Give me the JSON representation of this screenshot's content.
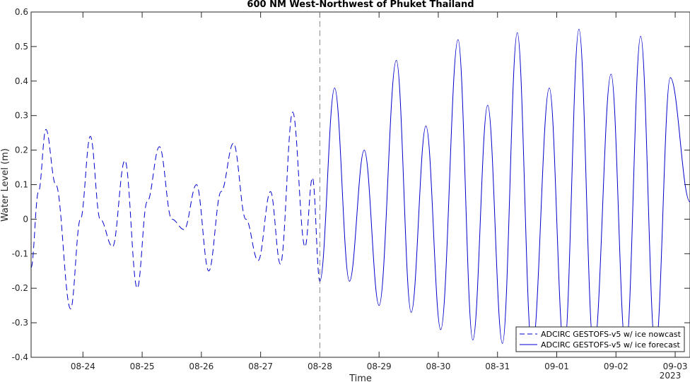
{
  "chart_data": {
    "type": "line",
    "title": "600 NM West-Northwest of Phuket Thailand",
    "xlabel": "Time",
    "ylabel": "Water Level (m)",
    "ylim": [
      -0.4,
      0.6
    ],
    "yticks": [
      "-0.4",
      "-0.3",
      "-0.2",
      "-0.1",
      "0",
      "0.1",
      "0.2",
      "0.3",
      "0.4",
      "0.5",
      "0.6"
    ],
    "xlim": [
      "2023-08-23 03:00",
      "2023-09-03 06:00"
    ],
    "xticks": [
      {
        "date": "2023-08-24",
        "label": "08-24"
      },
      {
        "date": "2023-08-25",
        "label": "08-25"
      },
      {
        "date": "2023-08-26",
        "label": "08-26"
      },
      {
        "date": "2023-08-27",
        "label": "08-27"
      },
      {
        "date": "2023-08-28",
        "label": "08-28"
      },
      {
        "date": "2023-08-29",
        "label": "08-29"
      },
      {
        "date": "2023-08-30",
        "label": "08-30"
      },
      {
        "date": "2023-08-31",
        "label": "08-31"
      },
      {
        "date": "2023-09-01",
        "label": "09-01"
      },
      {
        "date": "2023-09-02",
        "label": "09-02"
      },
      {
        "date": "2023-09-03",
        "label": "09-03"
      }
    ],
    "year_label": "2023",
    "forecast_start": "2023-08-28 00:00",
    "legend_position": "bottom-right",
    "series": [
      {
        "name": "ADCIRC GESTOFS-v5 w/ ice nowcast",
        "style": "dashed",
        "color": "#0000cc",
        "x": [
          "2023-08-23 03:00",
          "2023-08-23 06:00",
          "2023-08-23 09:00",
          "2023-08-23 13:00",
          "2023-08-23 19:00",
          "2023-08-23 23:00",
          "2023-08-24 03:00",
          "2023-08-24 07:00",
          "2023-08-24 12:00",
          "2023-08-24 17:00",
          "2023-08-24 22:00",
          "2023-08-25 02:00",
          "2023-08-25 07:00",
          "2023-08-25 12:00",
          "2023-08-25 17:00",
          "2023-08-25 22:00",
          "2023-08-26 03:00",
          "2023-08-26 08:00",
          "2023-08-26 13:00",
          "2023-08-26 18:00",
          "2023-08-26 23:00",
          "2023-08-27 04:00",
          "2023-08-27 08:00",
          "2023-08-27 13:00",
          "2023-08-27 18:00",
          "2023-08-27 21:00",
          "2023-08-28 00:00"
        ],
        "y": [
          -0.14,
          0.08,
          0.26,
          0.1,
          -0.26,
          0.0,
          0.24,
          0.0,
          -0.08,
          0.17,
          -0.2,
          0.05,
          0.21,
          0.0,
          -0.03,
          0.1,
          -0.15,
          0.08,
          0.22,
          0.0,
          -0.12,
          0.08,
          -0.13,
          0.31,
          -0.08,
          0.12,
          -0.18
        ]
      },
      {
        "name": "ADCIRC GESTOFS-v5 w/ ice forecast",
        "style": "solid",
        "color": "#0000cc",
        "x": [
          "2023-08-28 00:00",
          "2023-08-28 06:00",
          "2023-08-28 12:00",
          "2023-08-28 18:00",
          "2023-08-29 00:00",
          "2023-08-29 07:00",
          "2023-08-29 13:00",
          "2023-08-29 19:00",
          "2023-08-30 01:00",
          "2023-08-30 08:00",
          "2023-08-30 14:00",
          "2023-08-30 20:00",
          "2023-08-31 02:00",
          "2023-08-31 08:00",
          "2023-08-31 14:00",
          "2023-08-31 21:00",
          "2023-09-01 03:00",
          "2023-09-01 09:00",
          "2023-09-01 15:00",
          "2023-09-01 22:00",
          "2023-09-02 04:00",
          "2023-09-02 10:00",
          "2023-09-02 16:00",
          "2023-09-02 22:00",
          "2023-09-03 06:00"
        ],
        "y": [
          -0.18,
          0.38,
          -0.18,
          0.2,
          -0.25,
          0.46,
          -0.27,
          0.27,
          -0.32,
          0.52,
          -0.35,
          0.33,
          -0.36,
          0.54,
          -0.38,
          0.38,
          -0.38,
          0.55,
          -0.38,
          0.42,
          -0.38,
          0.53,
          -0.38,
          0.41,
          0.05
        ]
      }
    ]
  }
}
